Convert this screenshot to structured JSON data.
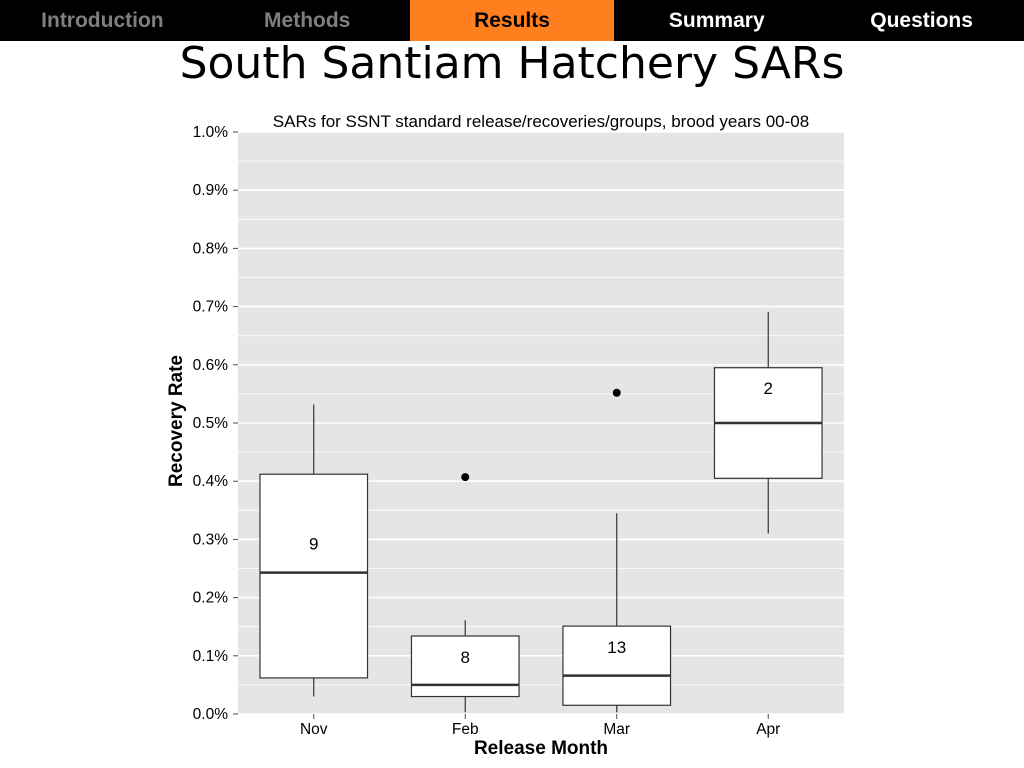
{
  "nav": {
    "tabs": [
      {
        "label": "Introduction",
        "state": "past"
      },
      {
        "label": "Methods",
        "state": "past"
      },
      {
        "label": "Results",
        "state": "active"
      },
      {
        "label": "Summary",
        "state": "upcoming"
      },
      {
        "label": "Questions",
        "state": "upcoming"
      }
    ],
    "colors": {
      "bar": "#000000",
      "active": "#ff7f1f",
      "past_text": "#7f7f7f",
      "upcoming_text": "#ffffff"
    }
  },
  "slide": {
    "title": "South Santiam Hatchery SARs"
  },
  "chart_data": {
    "type": "boxplot",
    "title": "SARs for SSNT standard release/recoveries/groups, brood years 00-08",
    "xlabel": "Release Month",
    "ylabel": "Recovery Rate",
    "ylim": [
      0.0,
      1.0
    ],
    "y_ticks": [
      0.0,
      0.1,
      0.2,
      0.3,
      0.4,
      0.5,
      0.6,
      0.7,
      0.8,
      0.9,
      1.0
    ],
    "y_tick_labels": [
      "0.0%",
      "0.1%",
      "0.2%",
      "0.3%",
      "0.4%",
      "0.5%",
      "0.6%",
      "0.7%",
      "0.8%",
      "0.9%",
      "1.0%"
    ],
    "y_minor_step": 0.05,
    "categories": [
      "Nov",
      "Feb",
      "Mar",
      "Apr"
    ],
    "boxes": [
      {
        "category": "Nov",
        "whisker_low": 0.03,
        "q1": 0.062,
        "median": 0.243,
        "q3": 0.412,
        "whisker_high": 0.532,
        "outliers": [],
        "n_label": "9",
        "label_y": 0.293
      },
      {
        "category": "Feb",
        "whisker_low": 0.003,
        "q1": 0.03,
        "median": 0.05,
        "q3": 0.134,
        "whisker_high": 0.161,
        "outliers": [
          0.407
        ],
        "n_label": "8",
        "label_y": 0.098
      },
      {
        "category": "Mar",
        "whisker_low": 0.003,
        "q1": 0.015,
        "median": 0.066,
        "q3": 0.151,
        "whisker_high": 0.345,
        "outliers": [
          0.552
        ],
        "n_label": "13",
        "label_y": 0.115
      },
      {
        "category": "Apr",
        "whisker_low": 0.31,
        "q1": 0.405,
        "median": 0.5,
        "q3": 0.595,
        "whisker_high": 0.691,
        "outliers": [],
        "n_label": "2",
        "label_y": 0.56
      }
    ],
    "grid": true,
    "colors": {
      "panel": "#e5e5e5",
      "grid": "#ffffff",
      "box_fill": "#ffffff",
      "box_stroke": "#333333",
      "median": "#333333",
      "outlier": "#000000"
    }
  }
}
